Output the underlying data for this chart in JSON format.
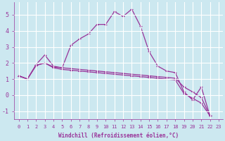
{
  "background_color": "#cce8f0",
  "grid_color": "#ffffff",
  "line_color": "#993399",
  "marker": "+",
  "xlabel": "Windchill (Refroidissement éolien,°C)",
  "xlim": [
    -0.5,
    23.5
  ],
  "ylim": [
    -1.5,
    5.8
  ],
  "xticks": [
    0,
    1,
    2,
    3,
    4,
    5,
    6,
    7,
    8,
    9,
    10,
    11,
    12,
    13,
    14,
    15,
    16,
    17,
    18,
    19,
    20,
    21,
    22,
    23
  ],
  "yticks": [
    -1,
    0,
    1,
    2,
    3,
    4,
    5
  ],
  "x": [
    0,
    1,
    2,
    3,
    4,
    5,
    6,
    7,
    8,
    9,
    10,
    11,
    12,
    13,
    14,
    15,
    16,
    17,
    18,
    19,
    20,
    21,
    22
  ],
  "s1": [
    1.2,
    1.0,
    1.9,
    2.5,
    1.8,
    1.7,
    3.1,
    3.5,
    3.8,
    4.4,
    4.4,
    5.2,
    4.9,
    5.35,
    4.3,
    2.7,
    1.8,
    1.5,
    1.4,
    0.2,
    -0.3,
    0.5,
    -1.3
  ],
  "s2": [
    1.2,
    1.0,
    1.85,
    2.0,
    1.75,
    1.7,
    1.65,
    1.6,
    1.55,
    1.5,
    1.45,
    1.4,
    1.35,
    1.3,
    1.25,
    1.2,
    1.15,
    1.1,
    1.05,
    0.5,
    0.2,
    -0.15,
    -1.3
  ],
  "s3": [
    1.2,
    1.0,
    1.85,
    2.0,
    1.7,
    1.6,
    1.55,
    1.5,
    1.45,
    1.4,
    1.35,
    1.3,
    1.25,
    1.2,
    1.15,
    1.1,
    1.05,
    1.0,
    0.95,
    0.1,
    -0.2,
    -0.5,
    -1.3
  ],
  "ms": 3,
  "lw": 0.9,
  "tick_fontsize": 5,
  "xlabel_fontsize": 5.5
}
